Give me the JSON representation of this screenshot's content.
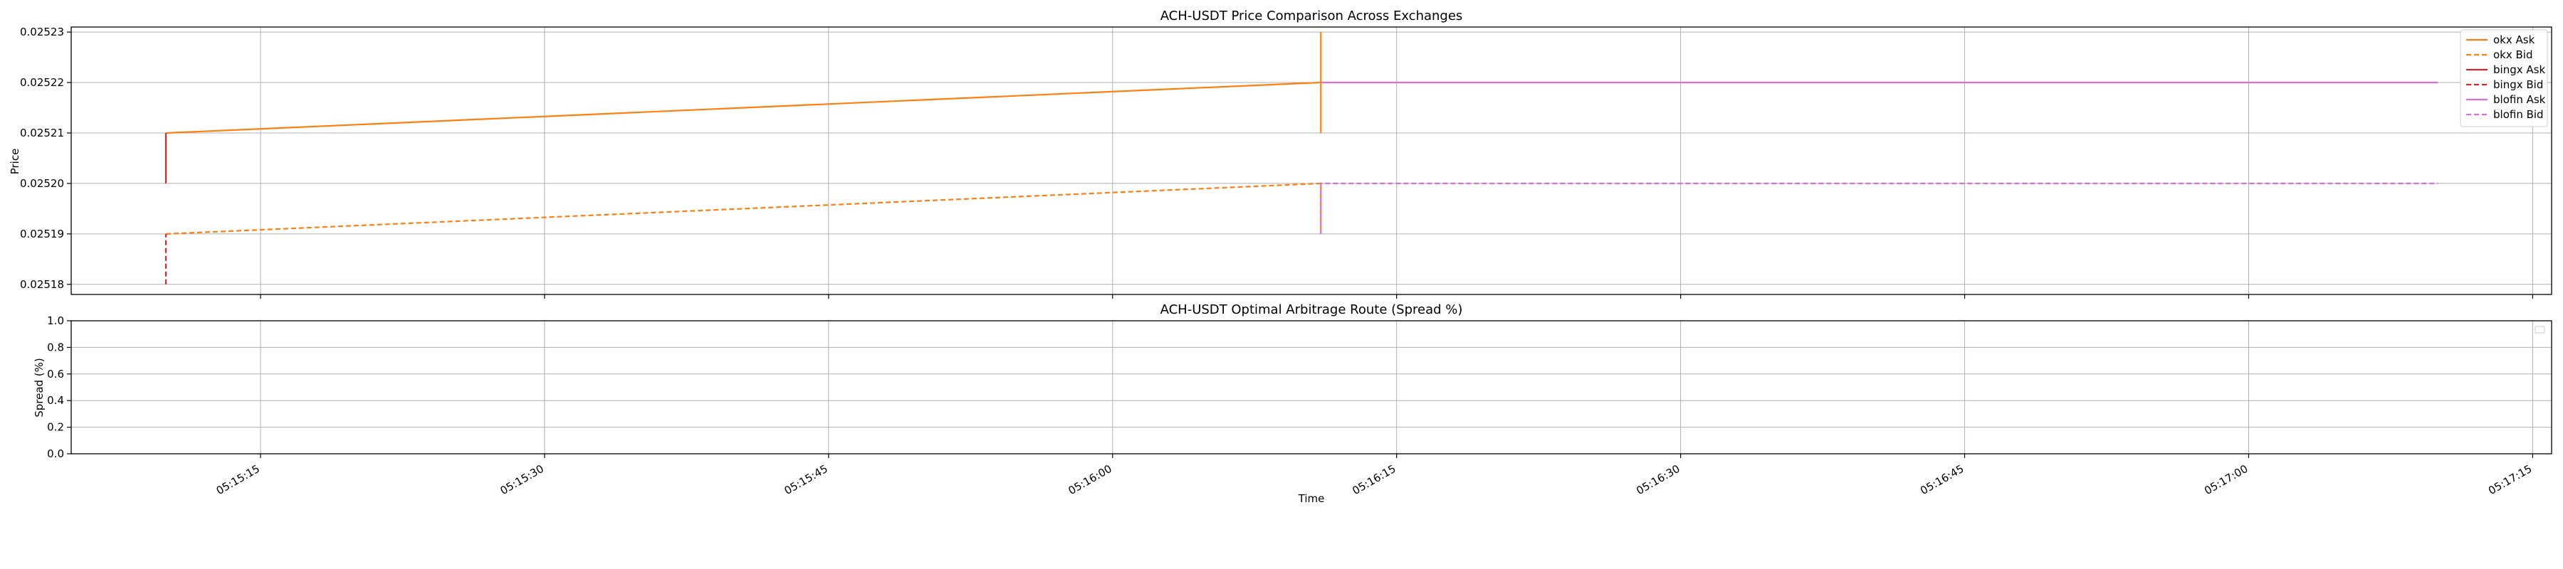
{
  "chart_data": [
    {
      "type": "line",
      "title": "ACH-USDT Price Comparison Across Exchanges",
      "xlabel": "",
      "ylabel": "Price",
      "ylim": [
        0.025178,
        0.025231
      ],
      "yticks": [
        "0.02518",
        "0.02519",
        "0.02520",
        "0.02521",
        "0.02522",
        "0.02523"
      ],
      "ytick_values": [
        0.02518,
        0.02519,
        0.0252,
        0.02521,
        0.02522,
        0.02523
      ],
      "grid": true,
      "legend_position": "top-right",
      "series": [
        {
          "name": "okx Ask",
          "color": "#ff7f0e",
          "dash": "solid",
          "points": [
            [
              "05:15:10",
              0.02521
            ],
            [
              "05:16:11",
              0.02522
            ],
            [
              "05:16:11",
              0.02523
            ],
            [
              "05:16:11",
              0.02521
            ]
          ]
        },
        {
          "name": "okx Bid",
          "color": "#ff7f0e",
          "dash": "dashed",
          "points": [
            [
              "05:15:10",
              0.02519
            ],
            [
              "05:16:11",
              0.0252
            ],
            [
              "05:16:11",
              0.02519
            ]
          ]
        },
        {
          "name": "bingx Ask",
          "color": "#d62728",
          "dash": "solid",
          "points": [
            [
              "05:15:10",
              0.0252
            ],
            [
              "05:15:10",
              0.02521
            ]
          ]
        },
        {
          "name": "bingx Bid",
          "color": "#d62728",
          "dash": "dashed",
          "points": [
            [
              "05:15:10",
              0.02518
            ],
            [
              "05:15:10",
              0.02519
            ]
          ]
        },
        {
          "name": "blofin Ask",
          "color": "#da70d6",
          "dash": "solid",
          "points": [
            [
              "05:16:11",
              0.02522
            ],
            [
              "05:17:10",
              0.02522
            ]
          ]
        },
        {
          "name": "blofin Bid",
          "color": "#da70d6",
          "dash": "dashed",
          "points": [
            [
              "05:16:11",
              0.02519
            ],
            [
              "05:16:11",
              0.0252
            ],
            [
              "05:17:10",
              0.0252
            ]
          ]
        }
      ]
    },
    {
      "type": "line",
      "title": "ACH-USDT Optimal Arbitrage Route (Spread %)",
      "xlabel": "Time",
      "ylabel": "Spread (%)",
      "ylim": [
        0.0,
        1.0
      ],
      "yticks": [
        "0.0",
        "0.2",
        "0.4",
        "0.6",
        "0.8",
        "1.0"
      ],
      "ytick_values": [
        0.0,
        0.2,
        0.4,
        0.6,
        0.8,
        1.0
      ],
      "grid": true,
      "legend_position": "top-right",
      "series": []
    }
  ],
  "x_axis": {
    "range": [
      "05:15:05",
      "05:17:16"
    ],
    "ticks": [
      "05:15:15",
      "05:15:30",
      "05:15:45",
      "05:16:00",
      "05:16:15",
      "05:16:30",
      "05:16:45",
      "05:17:00",
      "05:17:15"
    ]
  }
}
